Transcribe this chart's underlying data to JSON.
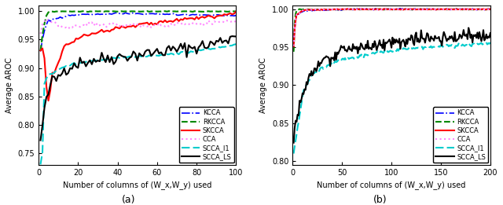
{
  "subplot_a": {
    "xlim": [
      0,
      100
    ],
    "ylim": [
      0.73,
      1.01
    ],
    "yticks": [
      0.75,
      0.8,
      0.85,
      0.9,
      0.95,
      1.0
    ],
    "xticks": [
      0,
      20,
      40,
      60,
      80,
      100
    ],
    "xlabel": "Number of columns of (W_x,W_y) used",
    "ylabel": "Average AROC"
  },
  "subplot_b": {
    "xlim": [
      0,
      200
    ],
    "ylim": [
      0.795,
      1.005
    ],
    "yticks": [
      0.8,
      0.85,
      0.9,
      0.95,
      1.0
    ],
    "xticks": [
      0,
      50,
      100,
      150,
      200
    ],
    "xlabel": "Number of columns of (W_x,W_y) used",
    "ylabel": "Average AROC"
  },
  "colors": {
    "KCCA": "#0000FF",
    "RKCCA": "#008800",
    "SKCCA": "#FF0000",
    "CCA": "#FF88FF",
    "SCCA_l1": "#00CCCC",
    "SCCA_LS": "#000000"
  },
  "background_color": "#FFFFFF",
  "label_fontsize": 7,
  "tick_fontsize": 7,
  "legend_fontsize": 6,
  "linewidth": 1.2
}
